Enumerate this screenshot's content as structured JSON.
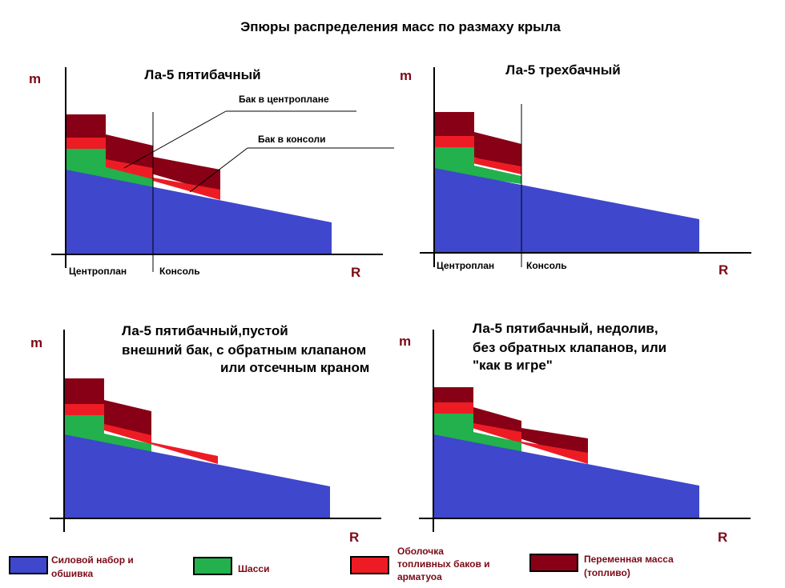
{
  "title": "Эпюры распределения масс по размаху крыла",
  "axis": {
    "y": "m",
    "x": "R"
  },
  "colors": {
    "structure": "#3f47cc",
    "gear": "#22b14c",
    "tank_shell": "#ed1c24",
    "fuel": "#880015"
  },
  "panels": [
    {
      "title_lines": [
        "Ла-5 пятибачный"
      ],
      "zone_labels": [
        "Центроплан",
        "Консоль"
      ],
      "annotations": [
        "Бак в центроплане",
        "Бак в консоли"
      ]
    },
    {
      "title_lines": [
        "Ла-5 трехбачный"
      ],
      "zone_labels": [
        "Центроплан",
        "Консоль"
      ]
    },
    {
      "title_lines": [
        "Ла-5 пятибачный,пустой",
        "внешний бак, с обратным клапаном",
        "или отсечным краном"
      ]
    },
    {
      "title_lines": [
        "Ла-5 пятибачный, недолив,",
        "без обратных клапанов, или",
        "\"как в игре\""
      ]
    }
  ],
  "legend": [
    {
      "key": "structure",
      "label_lines": [
        "Силовой набор и",
        "обшивка"
      ]
    },
    {
      "key": "gear",
      "label_lines": [
        "Шасси"
      ]
    },
    {
      "key": "tank_shell",
      "label_lines": [
        "Оболочка",
        "топливных баков и",
        "арматуоа"
      ]
    },
    {
      "key": "fuel",
      "label_lines": [
        "Переменная масса",
        "(топливо)"
      ]
    }
  ]
}
